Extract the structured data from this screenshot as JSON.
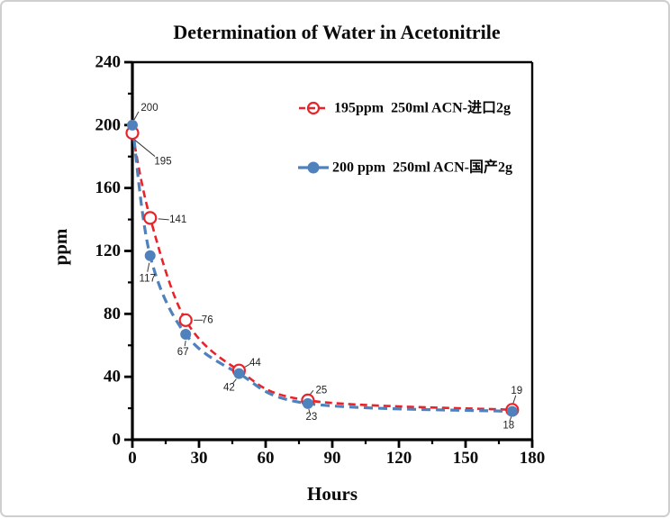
{
  "chart_data": {
    "type": "line",
    "title": "Determination of Water in Acetonitrile",
    "xlabel": "Hours",
    "ylabel": "ppm",
    "xlim": [
      0,
      180
    ],
    "ylim": [
      0,
      240
    ],
    "x_major_ticks": [
      0,
      30,
      60,
      90,
      120,
      150,
      180
    ],
    "x_minor_ticks": [
      15,
      45,
      75,
      105,
      135,
      165
    ],
    "y_major_ticks": [
      0,
      40,
      80,
      120,
      160,
      200,
      240
    ],
    "y_minor_ticks": [
      20,
      60,
      100,
      140,
      180,
      220
    ],
    "grid": false,
    "legend_position": "inside top",
    "frame": "full-box",
    "x": [
      0,
      8,
      24,
      48,
      79,
      171
    ],
    "series": [
      {
        "name": "195ppm  250ml ACN-进口2g",
        "color": "#e8232a",
        "marker": "open-circle",
        "line": "dashed",
        "values": [
          195,
          141,
          76,
          44,
          25,
          19
        ],
        "point_labels": [
          {
            "text": "195",
            "dx": 34,
            "dy": 32,
            "leader": [
              [
                3,
                8
              ],
              [
                25,
                26
              ]
            ]
          },
          {
            "text": "141",
            "dx": 31,
            "dy": 2,
            "leader": [
              [
                9,
                1
              ],
              [
                21,
                2
              ]
            ]
          },
          {
            "text": "76",
            "dx": 24,
            "dy": 0,
            "leader": [
              [
                9,
                0
              ],
              [
                19,
                0
              ]
            ]
          },
          {
            "text": "44",
            "dx": 18,
            "dy": -8,
            "leader": [
              [
                5,
                -3
              ],
              [
                12,
                -7
              ]
            ]
          },
          {
            "text": "25",
            "dx": 15,
            "dy": -11,
            "leader": [
              [
                2,
                -6
              ],
              [
                6,
                -11
              ]
            ]
          },
          {
            "text": "19",
            "dx": 5,
            "dy": -21,
            "leader": [
              [
                1,
                -7
              ],
              [
                4,
                -16
              ]
            ]
          }
        ]
      },
      {
        "name": "200 ppm  250ml ACN-国产2g",
        "color": "#4f81bd",
        "marker": "filled-circle",
        "line": "dashed",
        "values": [
          200,
          117,
          67,
          42,
          23,
          18
        ],
        "point_labels": [
          {
            "text": "200",
            "dx": 19,
            "dy": -19,
            "leader": [
              [
                2,
                -6
              ],
              [
                7,
                -15
              ]
            ]
          },
          {
            "text": "117",
            "dx": -3,
            "dy": 26,
            "leader": [
              [
                -1,
                8
              ],
              [
                -3,
                18
              ]
            ]
          },
          {
            "text": "67",
            "dx": -3,
            "dy": 20,
            "leader": [
              [
                0,
                7
              ],
              [
                -1,
                13
              ]
            ]
          },
          {
            "text": "42",
            "dx": -11,
            "dy": 16,
            "leader": [
              [
                -3,
                6
              ],
              [
                -7,
                11
              ]
            ]
          },
          {
            "text": "23",
            "dx": 4,
            "dy": 15,
            "leader": [
              [
                1,
                6
              ],
              [
                2,
                10
              ]
            ]
          },
          {
            "text": "18",
            "dx": -4,
            "dy": 16,
            "leader": [
              [
                -1,
                6
              ],
              [
                -3,
                11
              ]
            ]
          }
        ]
      }
    ]
  }
}
